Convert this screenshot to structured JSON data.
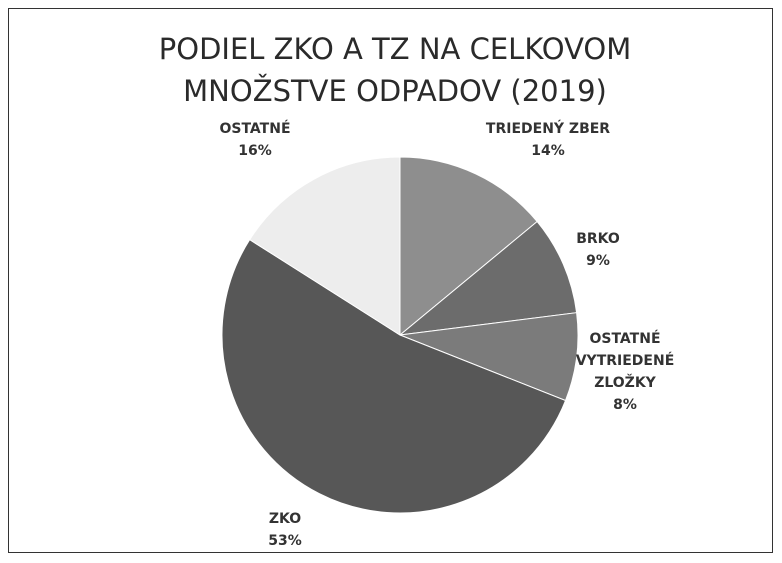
{
  "chart_data": {
    "type": "pie",
    "title": "PODIEL ZKO A TZ NA CELKOVOM MNOŽSTVE ODPADOV (2019)",
    "categories": [
      "TRIEDENÝ ZBER",
      "BRKO",
      "OSTATNÉ VYTRIEDENÉ ZLOŽKY",
      "ZKO",
      "OSTATNÉ"
    ],
    "values": [
      14,
      9,
      8,
      53,
      16
    ],
    "value_labels": [
      "14%",
      "9%",
      "8%",
      "53%",
      "16%"
    ],
    "colors": [
      "#8e8e8e",
      "#6c6c6c",
      "#7b7b7b",
      "#575757",
      "#ededed"
    ]
  }
}
